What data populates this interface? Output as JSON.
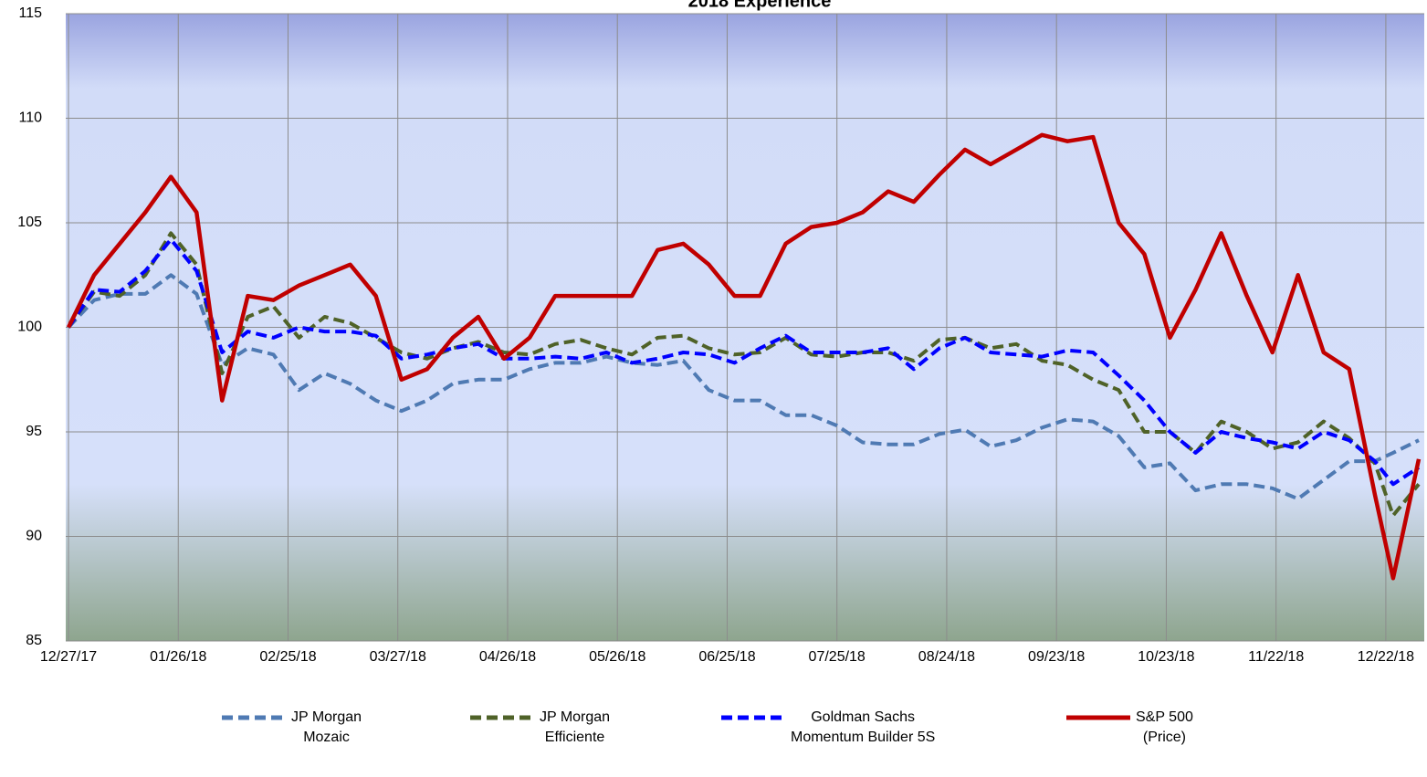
{
  "chart_data": {
    "type": "line",
    "title": "2018 Experience",
    "x": [
      "12/27/17",
      "01/03/18",
      "01/10/18",
      "01/17/18",
      "01/24/18",
      "01/31/18",
      "02/07/18",
      "02/14/18",
      "02/21/18",
      "02/28/18",
      "03/07/18",
      "03/14/18",
      "03/21/18",
      "03/28/18",
      "04/04/18",
      "04/11/18",
      "04/18/18",
      "04/25/18",
      "05/02/18",
      "05/09/18",
      "05/16/18",
      "05/23/18",
      "05/30/18",
      "06/06/18",
      "06/13/18",
      "06/20/18",
      "06/27/18",
      "07/04/18",
      "07/11/18",
      "07/18/18",
      "07/25/18",
      "08/01/18",
      "08/08/18",
      "08/15/18",
      "08/22/18",
      "08/29/18",
      "09/05/18",
      "09/12/18",
      "09/19/18",
      "09/26/18",
      "10/03/18",
      "10/10/18",
      "10/17/18",
      "10/24/18",
      "10/31/18",
      "11/07/18",
      "11/14/18",
      "11/21/18",
      "11/28/18",
      "12/05/18",
      "12/12/18",
      "12/19/18",
      "12/24/18",
      "12/31/18"
    ],
    "series": [
      {
        "name": "JP Morgan\nMozaic",
        "color": "#4f7ab3",
        "dash": true,
        "values": [
          100,
          101.3,
          101.6,
          101.6,
          102.5,
          101.6,
          98.2,
          99,
          98.7,
          97,
          97.8,
          97.3,
          96.5,
          96,
          96.5,
          97.3,
          97.5,
          97.5,
          98,
          98.3,
          98.3,
          98.6,
          98.3,
          98.2,
          98.4,
          97,
          96.5,
          96.5,
          95.8,
          95.8,
          95.3,
          94.5,
          94.4,
          94.4,
          94.9,
          95.1,
          94.3,
          94.6,
          95.2,
          95.6,
          95.5,
          94.8,
          93.3,
          93.5,
          92.2,
          92.5,
          92.5,
          92.3,
          91.8,
          92.7,
          93.6,
          93.6,
          94,
          94.6
        ]
      },
      {
        "name": "JP Morgan\nEfficiente",
        "color": "#4f6228",
        "dash": true,
        "values": [
          100,
          101.7,
          101.5,
          102.5,
          104.5,
          103,
          97.8,
          100.5,
          101,
          99.5,
          100.5,
          100.2,
          99.5,
          98.8,
          98.5,
          99,
          99.3,
          98.8,
          98.7,
          99.2,
          99.4,
          99,
          98.7,
          99.5,
          99.6,
          99,
          98.7,
          98.8,
          99.5,
          98.7,
          98.6,
          98.8,
          98.8,
          98.4,
          99.4,
          99.5,
          99,
          99.2,
          98.4,
          98.2,
          97.5,
          97,
          95,
          95,
          94,
          95.5,
          95,
          94.2,
          94.5,
          95.5,
          94.7,
          93.5,
          91,
          92.5
        ]
      },
      {
        "name": "Goldman Sachs\nMomentum Builder 5S",
        "color": "#0000ff",
        "dash": true,
        "values": [
          100,
          101.8,
          101.7,
          102.7,
          104.2,
          102.7,
          98.8,
          99.8,
          99.5,
          100,
          99.8,
          99.8,
          99.6,
          98.5,
          98.7,
          99,
          99.2,
          98.5,
          98.5,
          98.6,
          98.5,
          98.8,
          98.3,
          98.5,
          98.8,
          98.7,
          98.3,
          99,
          99.6,
          98.8,
          98.8,
          98.8,
          99,
          98,
          99,
          99.5,
          98.8,
          98.7,
          98.6,
          98.9,
          98.8,
          97.7,
          96.5,
          95,
          94,
          95,
          94.7,
          94.5,
          94.2,
          95,
          94.6,
          93.6,
          92.5,
          93.3
        ]
      },
      {
        "name": "S&P 500\n(Price)",
        "color": "#c00000",
        "dash": false,
        "values": [
          100,
          102.5,
          104,
          105.5,
          107.2,
          105.5,
          96.5,
          101.5,
          101.3,
          102,
          102.5,
          103,
          101.5,
          97.5,
          98,
          99.5,
          100.5,
          98.5,
          99.5,
          101.5,
          101.5,
          101.5,
          101.5,
          103.7,
          104,
          103,
          101.5,
          101.5,
          104,
          104.8,
          105,
          105.5,
          106.5,
          106,
          107.3,
          108.5,
          107.8,
          108.5,
          109.2,
          108.9,
          109.1,
          105,
          103.5,
          99.5,
          101.8,
          104.5,
          101.5,
          98.8,
          102.5,
          98.8,
          98,
          92,
          88,
          93.7
        ]
      }
    ],
    "xlim": [
      "12/27/17",
      "01/01/19"
    ],
    "xticks": [
      "12/27/17",
      "01/26/18",
      "02/25/18",
      "03/27/18",
      "04/26/18",
      "05/26/18",
      "06/25/18",
      "07/25/18",
      "08/24/18",
      "09/23/18",
      "10/23/18",
      "11/22/18",
      "12/22/18"
    ],
    "ylim": [
      85,
      115
    ],
    "yticks": [
      85,
      90,
      95,
      100,
      105,
      110,
      115
    ],
    "grid": true,
    "legend": "bottom"
  }
}
